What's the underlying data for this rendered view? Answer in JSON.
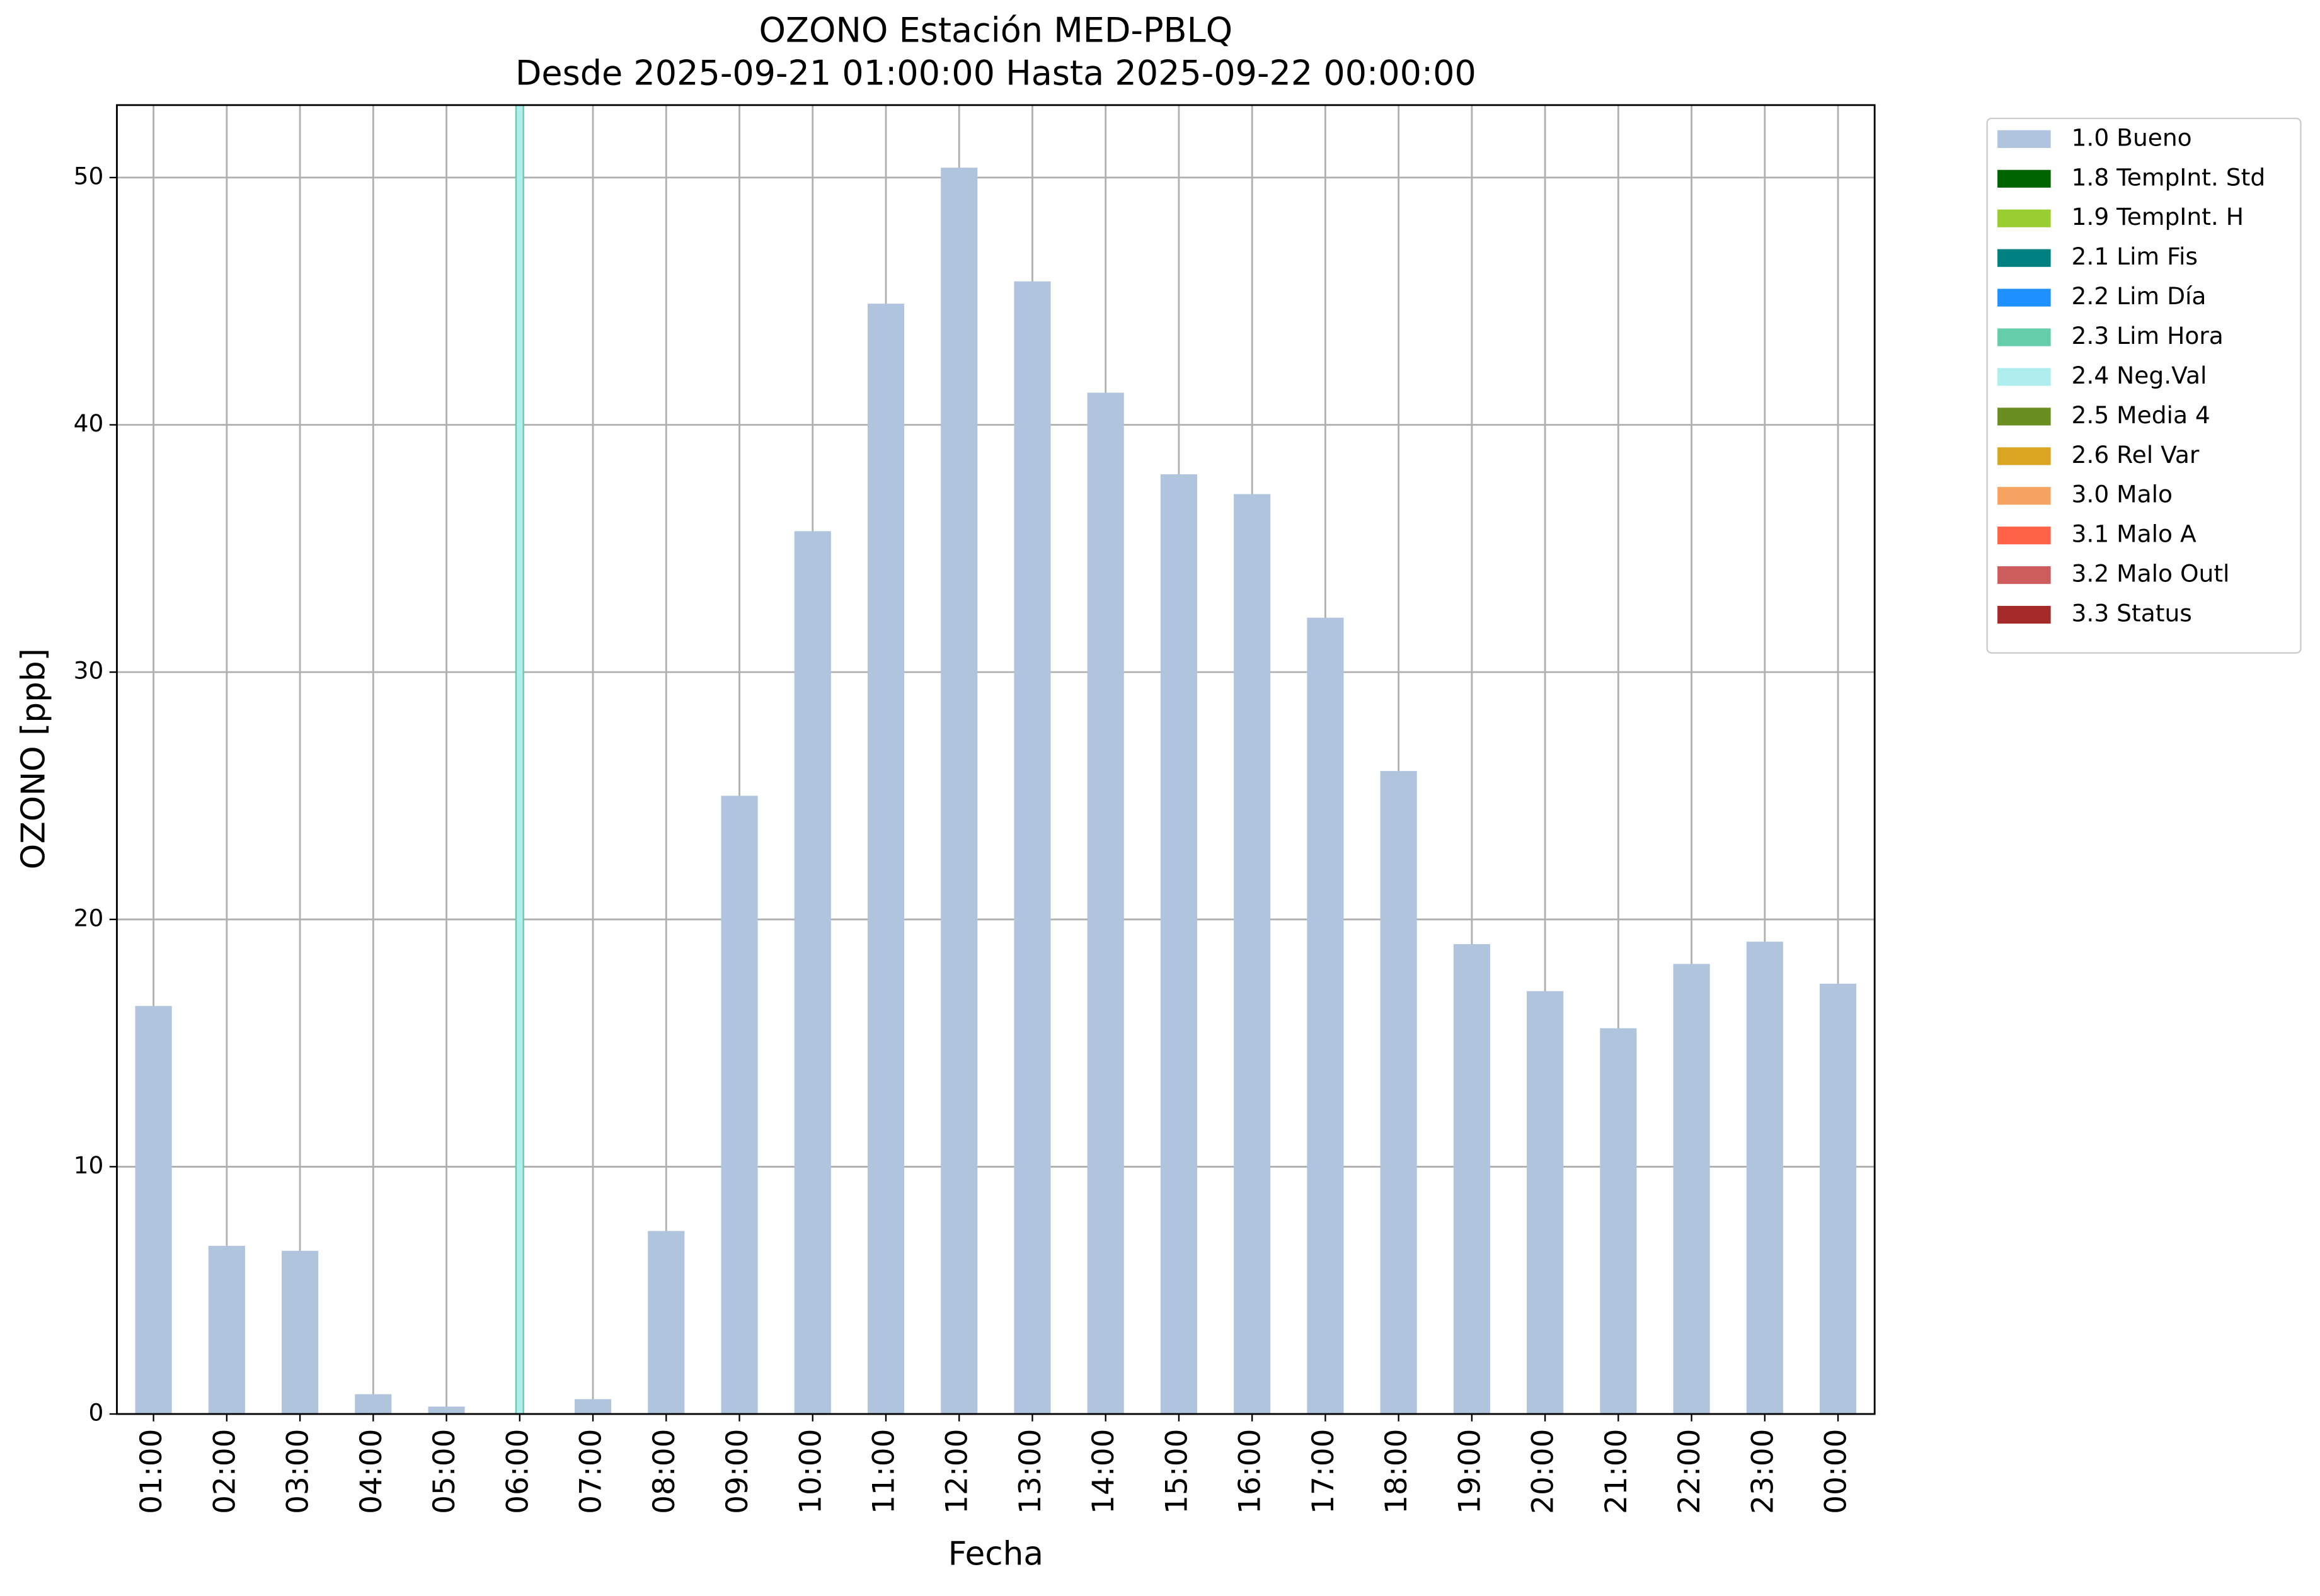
{
  "chart_data": {
    "type": "bar",
    "title": "OZONO Estación MED-PBLQ",
    "subtitle": "Desde 2025-09-21 01:00:00 Hasta 2025-09-22 00:00:00",
    "x_label": "Fecha",
    "y_label": "OZONO [ppb]",
    "categories": [
      "01:00",
      "02:00",
      "03:00",
      "04:00",
      "05:00",
      "06:00",
      "07:00",
      "08:00",
      "09:00",
      "10:00",
      "11:00",
      "12:00",
      "13:00",
      "14:00",
      "15:00",
      "16:00",
      "17:00",
      "18:00",
      "19:00",
      "20:00",
      "21:00",
      "22:00",
      "23:00",
      "00:00"
    ],
    "series": [
      {
        "name": "1.0 Bueno",
        "color": "#b0c4de",
        "values": [
          16.5,
          6.8,
          6.6,
          0.8,
          0.3,
          null,
          0.6,
          7.4,
          25.0,
          35.7,
          44.9,
          50.4,
          45.8,
          41.3,
          38.0,
          37.2,
          32.2,
          26.0,
          19.0,
          17.1,
          15.6,
          18.2,
          19.1,
          17.4
        ]
      },
      {
        "name": "1.8 TempInt. Std",
        "color": "#006400",
        "values": [
          null,
          null,
          null,
          null,
          null,
          null,
          null,
          null,
          null,
          null,
          null,
          null,
          null,
          null,
          null,
          null,
          null,
          null,
          null,
          null,
          null,
          null,
          null,
          null
        ]
      },
      {
        "name": "1.9 TempInt. H",
        "color": "#9acd32",
        "values": [
          null,
          null,
          null,
          null,
          null,
          null,
          null,
          null,
          null,
          null,
          null,
          null,
          null,
          null,
          null,
          null,
          null,
          null,
          null,
          null,
          null,
          null,
          null,
          null
        ]
      },
      {
        "name": "2.1 Lim Fis",
        "color": "#008080",
        "values": [
          null,
          null,
          null,
          null,
          null,
          null,
          null,
          null,
          null,
          null,
          null,
          null,
          null,
          null,
          null,
          null,
          null,
          null,
          null,
          null,
          null,
          null,
          null,
          null
        ]
      },
      {
        "name": "2.2 Lim Día",
        "color": "#1e90ff",
        "values": [
          null,
          null,
          null,
          null,
          null,
          null,
          null,
          null,
          null,
          null,
          null,
          null,
          null,
          null,
          null,
          null,
          null,
          null,
          null,
          null,
          null,
          null,
          null,
          null
        ]
      },
      {
        "name": "2.3 Lim Hora",
        "color": "#66cdaa",
        "values": [
          null,
          null,
          null,
          null,
          null,
          null,
          null,
          null,
          null,
          null,
          null,
          null,
          null,
          null,
          null,
          null,
          null,
          null,
          null,
          null,
          null,
          null,
          null,
          null
        ]
      },
      {
        "name": "2.4 Neg.Val",
        "color": "#afeeee",
        "values": [
          null,
          null,
          null,
          null,
          null,
          null,
          null,
          null,
          null,
          null,
          null,
          null,
          null,
          null,
          null,
          null,
          null,
          null,
          null,
          null,
          null,
          null,
          null,
          null
        ]
      },
      {
        "name": "2.5 Media 4",
        "color": "#6b8e23",
        "values": [
          null,
          null,
          null,
          null,
          null,
          null,
          null,
          null,
          null,
          null,
          null,
          null,
          null,
          null,
          null,
          null,
          null,
          null,
          null,
          null,
          null,
          null,
          null,
          null
        ]
      },
      {
        "name": "2.6 Rel Var",
        "color": "#daa520",
        "values": [
          null,
          null,
          null,
          null,
          null,
          null,
          null,
          null,
          null,
          null,
          null,
          null,
          null,
          null,
          null,
          null,
          null,
          null,
          null,
          null,
          null,
          null,
          null,
          null
        ]
      },
      {
        "name": "3.0 Malo",
        "color": "#f4a460",
        "values": [
          null,
          null,
          null,
          null,
          null,
          null,
          null,
          null,
          null,
          null,
          null,
          null,
          null,
          null,
          null,
          null,
          null,
          null,
          null,
          null,
          null,
          null,
          null,
          null
        ]
      },
      {
        "name": "3.1 Malo A",
        "color": "#ff6347",
        "values": [
          null,
          null,
          null,
          null,
          null,
          null,
          null,
          null,
          null,
          null,
          null,
          null,
          null,
          null,
          null,
          null,
          null,
          null,
          null,
          null,
          null,
          null,
          null,
          null
        ]
      },
      {
        "name": "3.2 Malo Outl",
        "color": "#cd5c5c",
        "values": [
          null,
          null,
          null,
          null,
          null,
          null,
          null,
          null,
          null,
          null,
          null,
          null,
          null,
          null,
          null,
          null,
          null,
          null,
          null,
          null,
          null,
          null,
          null,
          null
        ]
      },
      {
        "name": "3.3 Status",
        "color": "#a52a2a",
        "values": [
          null,
          null,
          null,
          null,
          null,
          null,
          null,
          null,
          null,
          null,
          null,
          null,
          null,
          null,
          null,
          null,
          null,
          null,
          null,
          null,
          null,
          null,
          null,
          null
        ]
      }
    ],
    "highlight": {
      "category": "06:00",
      "color": "#afeeee",
      "edge": "#66cdaa"
    },
    "ylim": [
      0,
      52.93
    ],
    "yticks": [
      0,
      10,
      20,
      30,
      40,
      50
    ],
    "grid": true,
    "legend": "outside-right"
  }
}
